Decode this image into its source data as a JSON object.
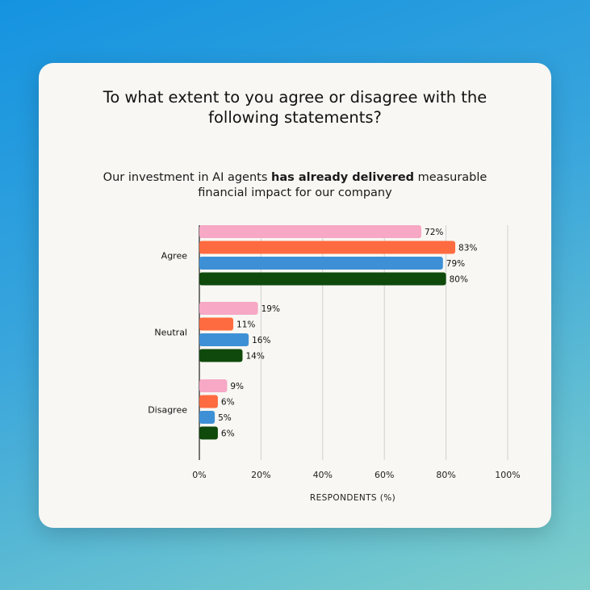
{
  "title_lines": [
    "To what extent to you agree or disagree with the",
    "following statements?"
  ],
  "subtitle": {
    "line1_pre": "Our investment in AI agents ",
    "line1_bold": "has already delivered",
    "line1_post": " measurable",
    "line2": "financial  impact for our company"
  },
  "colors": {
    "series": [
      "#f6a8c4",
      "#ff6b40",
      "#3e90d6",
      "#0f4a0c"
    ],
    "grid": "#d0d0d0",
    "card": "#f8f7f3"
  },
  "chart_data": {
    "type": "bar",
    "orientation": "horizontal",
    "categories": [
      "Agree",
      "Neutral",
      "Disagree"
    ],
    "series": [
      {
        "values": [
          72,
          19,
          9
        ]
      },
      {
        "values": [
          83,
          11,
          6
        ]
      },
      {
        "values": [
          79,
          16,
          5
        ]
      },
      {
        "values": [
          80,
          14,
          6
        ]
      }
    ],
    "xlim": [
      0,
      100
    ],
    "xticks": [
      0,
      20,
      40,
      60,
      80,
      100
    ],
    "xtick_labels": [
      "0%",
      "20%",
      "40%",
      "60%",
      "80%",
      "100%"
    ],
    "xlabel": "RESPONDENTS (%)",
    "value_suffix": "%",
    "grid": true
  }
}
